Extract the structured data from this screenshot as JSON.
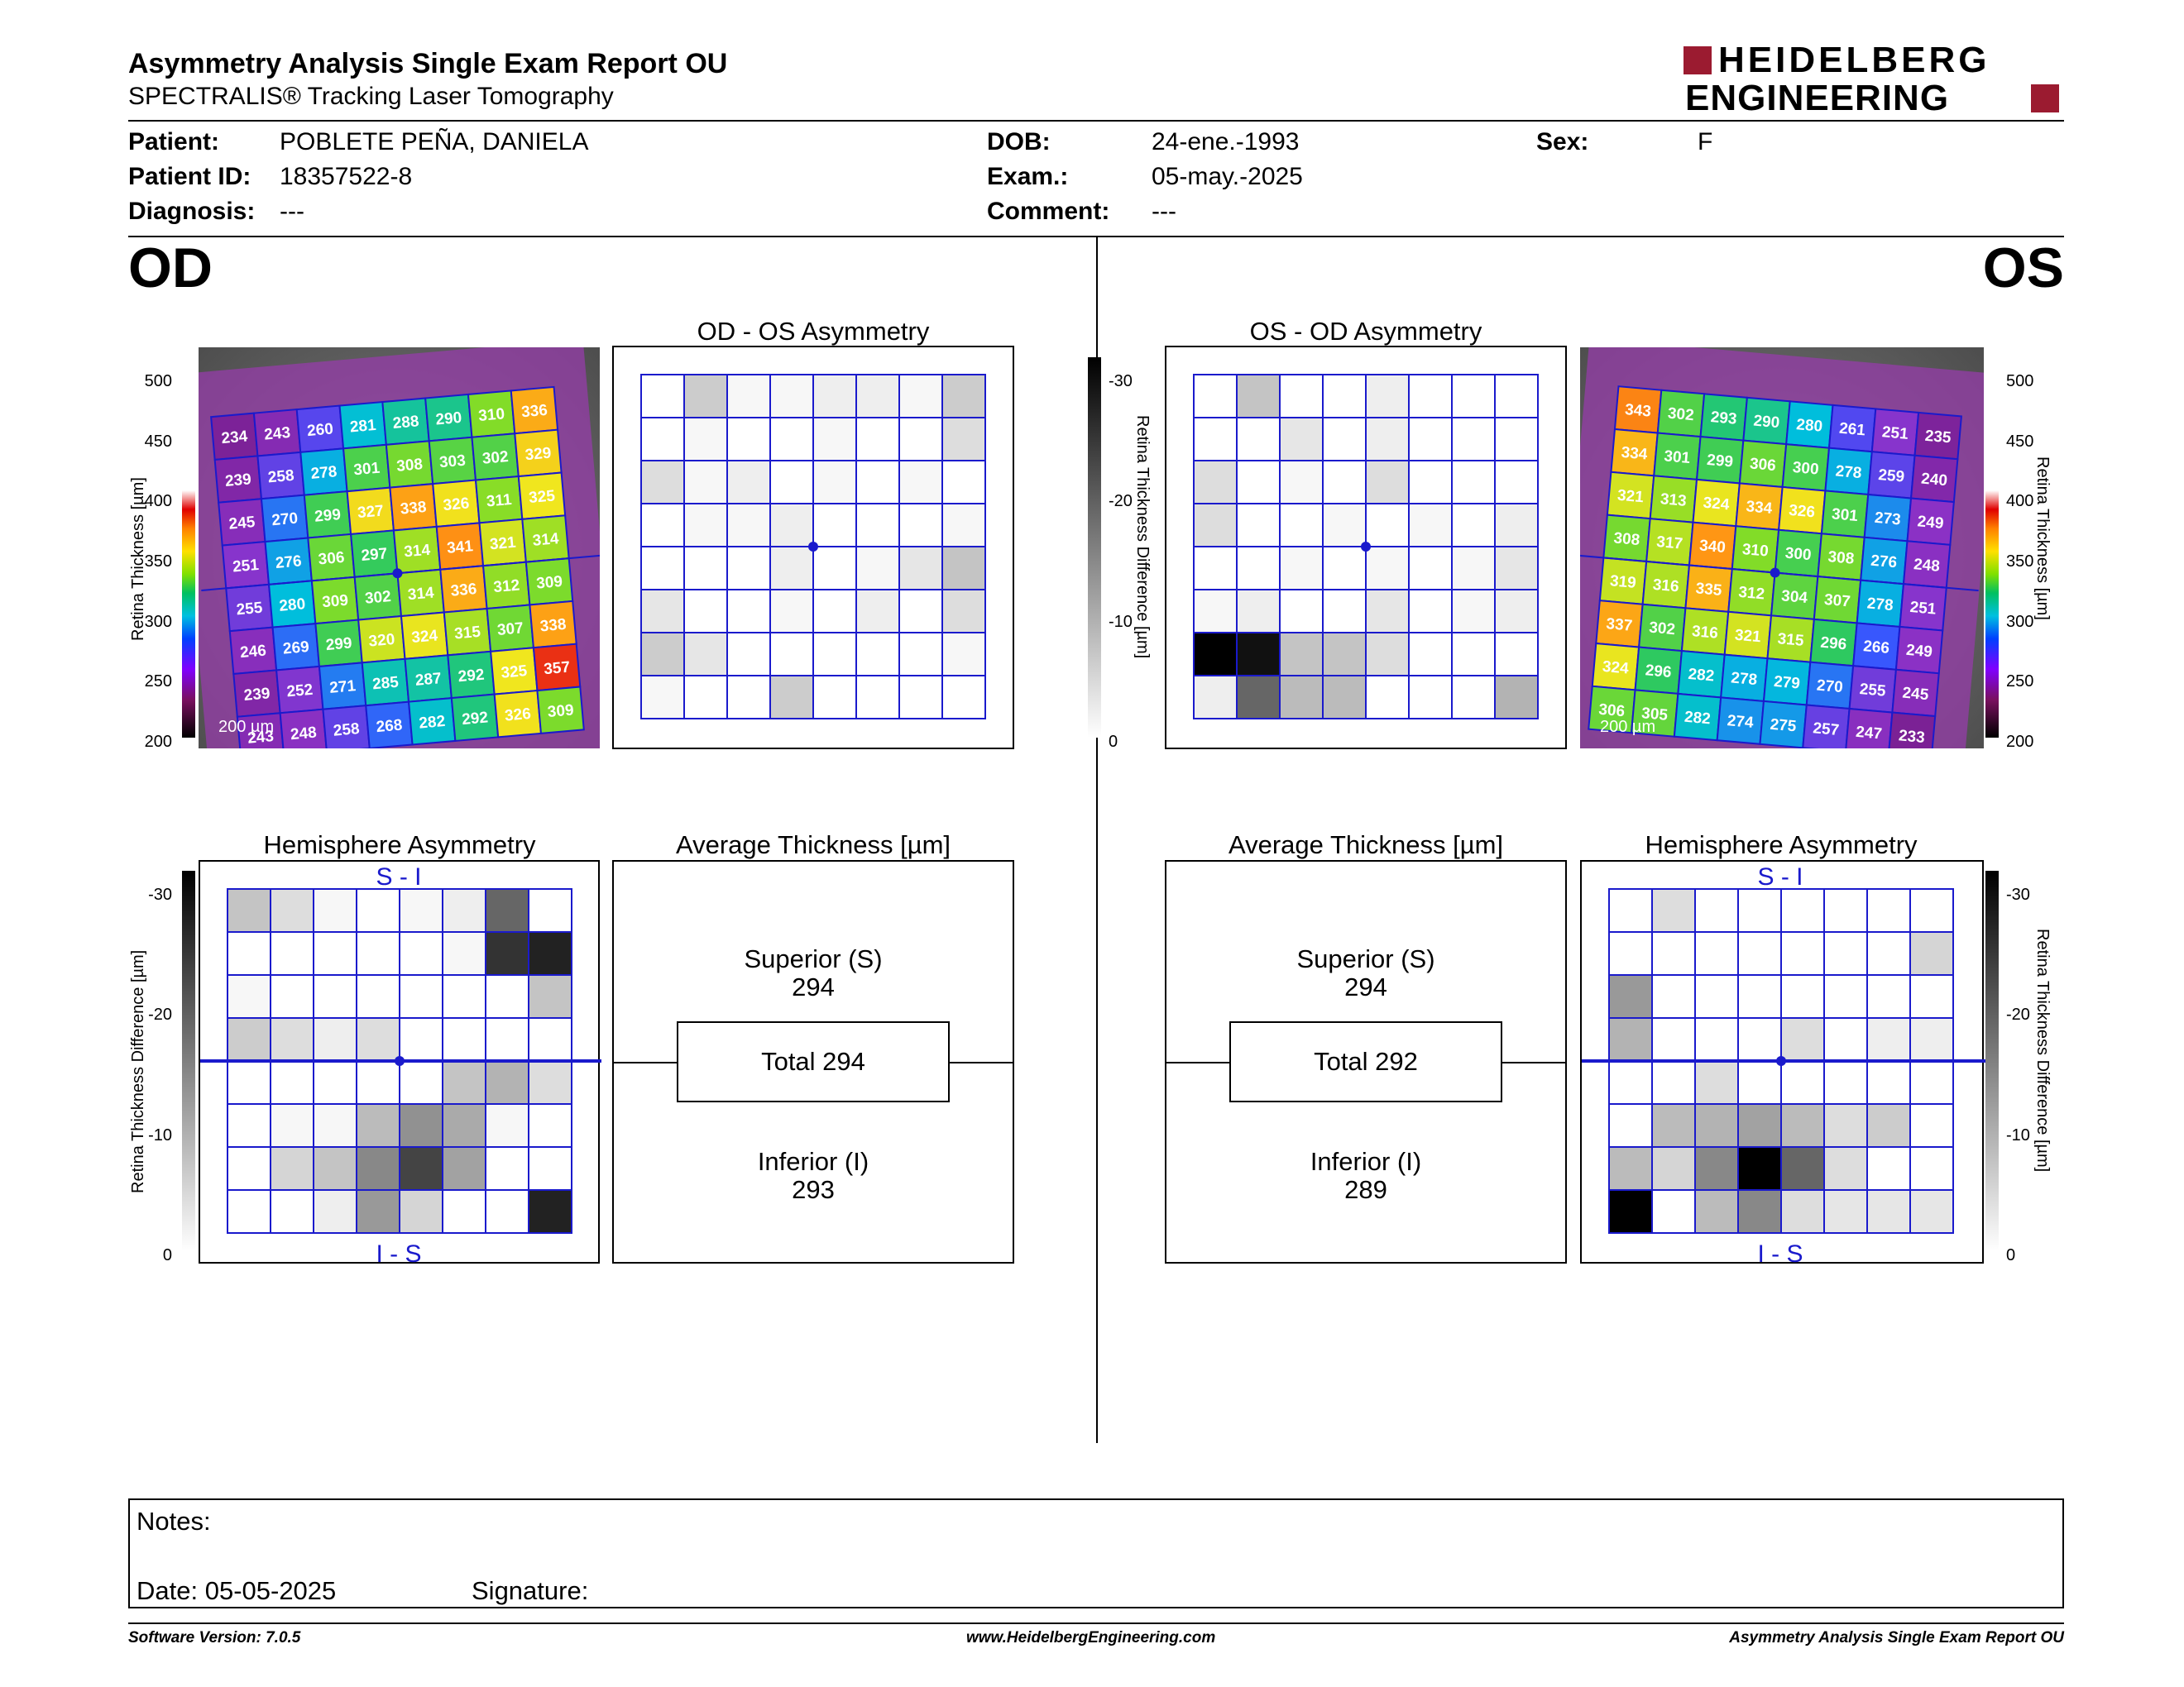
{
  "header": {
    "title": "Asymmetry Analysis Single Exam Report OU",
    "subtitle": "SPECTRALIS® Tracking Laser Tomography",
    "logo_line1": "HEIDELBERG",
    "logo_line2": "ENGINEERING",
    "brand_color": "#9b1b30"
  },
  "patient": {
    "patient_label": "Patient:",
    "patient_value": "POBLETE PEÑA, DANIELA",
    "id_label": "Patient ID:",
    "id_value": "18357522-8",
    "diagnosis_label": "Diagnosis:",
    "diagnosis_value": "---",
    "dob_label": "DOB:",
    "dob_value": "24-ene.-1993",
    "exam_label": "Exam.:",
    "exam_value": "05-may.-2025",
    "comment_label": "Comment:",
    "comment_value": "---",
    "sex_label": "Sex:",
    "sex_value": "F"
  },
  "od": {
    "label": "OD",
    "asym_title": "OD - OS Asymmetry",
    "hemi_title": "Hemisphere Asymmetry",
    "avg_title": "Average Thickness [µm]",
    "superior_label": "Superior (S)",
    "superior_value": "294",
    "total_label": "Total 294",
    "inferior_label": "Inferior (I)",
    "inferior_value": "293",
    "hemi_top": "S - I",
    "hemi_bottom": "I - S",
    "scale_text": "200 µm",
    "thickness_grid": [
      [
        234,
        243,
        260,
        281,
        288,
        290,
        310,
        336
      ],
      [
        239,
        258,
        278,
        301,
        308,
        303,
        302,
        329
      ],
      [
        245,
        270,
        299,
        327,
        338,
        326,
        311,
        325
      ],
      [
        251,
        276,
        306,
        297,
        314,
        341,
        321,
        314
      ],
      [
        255,
        280,
        309,
        302,
        314,
        336,
        312,
        309
      ],
      [
        246,
        269,
        299,
        320,
        324,
        315,
        307,
        338
      ],
      [
        239,
        252,
        271,
        285,
        287,
        292,
        325,
        357
      ],
      [
        243,
        248,
        258,
        268,
        282,
        292,
        326,
        309
      ]
    ],
    "asym_grid": [
      [
        0,
        6,
        1,
        1,
        2,
        2,
        1,
        6
      ],
      [
        0,
        1,
        0,
        0,
        1,
        0,
        0,
        4
      ],
      [
        4,
        1,
        2,
        0,
        1,
        0,
        1,
        0
      ],
      [
        0,
        1,
        1,
        2,
        0,
        0,
        0,
        1
      ],
      [
        0,
        0,
        0,
        2,
        0,
        1,
        3,
        7
      ],
      [
        3,
        0,
        0,
        1,
        0,
        2,
        0,
        4
      ],
      [
        6,
        3,
        0,
        0,
        0,
        0,
        0,
        1
      ],
      [
        1,
        0,
        0,
        6,
        0,
        0,
        0,
        0
      ]
    ],
    "hemi_grid": [
      [
        7,
        4,
        1,
        0,
        1,
        2,
        18,
        0
      ],
      [
        0,
        0,
        0,
        0,
        0,
        1,
        24,
        26
      ],
      [
        1,
        0,
        0,
        0,
        0,
        0,
        0,
        7
      ],
      [
        6,
        4,
        2,
        4,
        0,
        0,
        0,
        0
      ],
      [
        0,
        0,
        0,
        0,
        0,
        7,
        9,
        4
      ],
      [
        0,
        1,
        1,
        8,
        13,
        10,
        1,
        0
      ],
      [
        0,
        5,
        7,
        14,
        22,
        11,
        0,
        0
      ],
      [
        0,
        0,
        2,
        12,
        5,
        0,
        0,
        26
      ]
    ]
  },
  "os": {
    "label": "OS",
    "asym_title": "OS - OD Asymmetry",
    "hemi_title": "Hemisphere Asymmetry",
    "avg_title": "Average Thickness [µm]",
    "superior_label": "Superior (S)",
    "superior_value": "294",
    "total_label": "Total 292",
    "inferior_label": "Inferior (I)",
    "inferior_value": "289",
    "hemi_top": "S - I",
    "hemi_bottom": "I - S",
    "scale_text": "200 µm",
    "thickness_grid": [
      [
        343,
        302,
        293,
        290,
        280,
        261,
        251,
        235
      ],
      [
        334,
        301,
        299,
        306,
        300,
        278,
        259,
        240
      ],
      [
        321,
        313,
        324,
        334,
        326,
        301,
        273,
        249
      ],
      [
        308,
        317,
        340,
        310,
        300,
        308,
        276,
        248
      ],
      [
        319,
        316,
        335,
        312,
        304,
        307,
        278,
        251
      ],
      [
        337,
        302,
        316,
        321,
        315,
        296,
        266,
        249
      ],
      [
        324,
        296,
        282,
        278,
        279,
        270,
        255,
        245
      ],
      [
        306,
        305,
        282,
        274,
        275,
        257,
        247,
        233
      ]
    ],
    "asym_grid": [
      [
        0,
        7,
        0,
        0,
        2,
        0,
        0,
        0
      ],
      [
        0,
        0,
        3,
        0,
        2,
        0,
        0,
        0
      ],
      [
        4,
        0,
        1,
        0,
        4,
        0,
        0,
        0
      ],
      [
        4,
        0,
        0,
        1,
        0,
        1,
        0,
        2
      ],
      [
        0,
        0,
        1,
        0,
        1,
        0,
        1,
        3
      ],
      [
        1,
        2,
        0,
        0,
        3,
        0,
        1,
        2
      ],
      [
        30,
        28,
        7,
        7,
        4,
        0,
        0,
        0
      ],
      [
        2,
        18,
        8,
        8,
        0,
        0,
        0,
        9
      ]
    ],
    "hemi_grid": [
      [
        0,
        4,
        0,
        0,
        0,
        0,
        0,
        0
      ],
      [
        0,
        0,
        0,
        0,
        0,
        0,
        0,
        5
      ],
      [
        12,
        0,
        0,
        0,
        0,
        0,
        0,
        0
      ],
      [
        9,
        0,
        0,
        0,
        4,
        0,
        2,
        2
      ],
      [
        0,
        0,
        4,
        0,
        0,
        0,
        0,
        0
      ],
      [
        0,
        8,
        9,
        11,
        8,
        4,
        6,
        0
      ],
      [
        8,
        5,
        14,
        30,
        18,
        4,
        0,
        0
      ],
      [
        30,
        0,
        8,
        14,
        4,
        3,
        3,
        3
      ]
    ]
  },
  "scales": {
    "thickness_axis_label": "Retina Thickness [µm]",
    "thickness_ticks": [
      "500",
      "450",
      "400",
      "350",
      "300",
      "250",
      "200"
    ],
    "diff_axis_label": "Retina Thickness Difference [µm]",
    "diff_ticks": [
      "-30",
      "-20",
      "-10",
      "0"
    ]
  },
  "notes": {
    "notes_label": "Notes:",
    "date_label": "Date: 05-05-2025",
    "signature_label": "Signature:"
  },
  "footer": {
    "software": "Software Version: 7.0.5",
    "url": "www.HeidelbergEngineering.com",
    "report_name": "Asymmetry Analysis Single Exam Report OU"
  }
}
